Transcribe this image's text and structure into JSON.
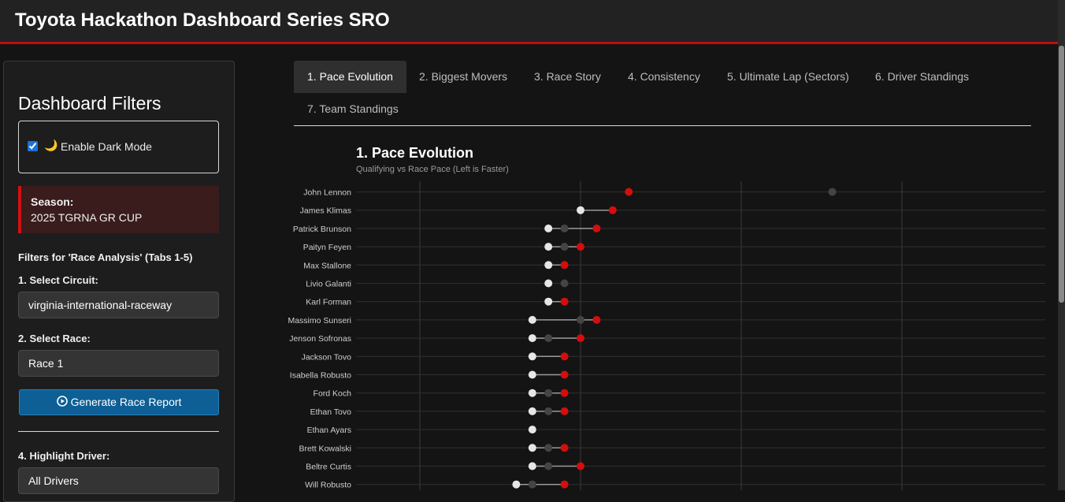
{
  "header": {
    "title": "Toyota Hackathon Dashboard Series SRO"
  },
  "sidebar": {
    "title": "Dashboard Filters",
    "dark_mode": {
      "icon": "moon-icon",
      "glyph": "🌙",
      "label": "Enable Dark Mode",
      "checked": true
    },
    "season": {
      "label": "Season:",
      "value": "2025 TGRNA GR CUP"
    },
    "filters_heading": "Filters for 'Race Analysis' (Tabs 1-5)",
    "circuit": {
      "label": "1. Select Circuit:",
      "value": "virginia-international-raceway"
    },
    "race": {
      "label": "2. Select Race:",
      "value": "Race 1"
    },
    "generate_button": {
      "label": "Generate Race Report",
      "icon": "play-circle-icon"
    },
    "highlight": {
      "label": "4. Highlight Driver:",
      "value": "All Drivers"
    }
  },
  "tabs": [
    {
      "label": "1. Pace Evolution",
      "active": true
    },
    {
      "label": "2. Biggest Movers",
      "active": false
    },
    {
      "label": "3. Race Story",
      "active": false
    },
    {
      "label": "4. Consistency",
      "active": false
    },
    {
      "label": "5. Ultimate Lap (Sectors)",
      "active": false
    },
    {
      "label": "6. Driver Standings",
      "active": false
    },
    {
      "label": "7. Team Standings",
      "active": false
    }
  ],
  "colors": {
    "accent_red": "#d40d0d",
    "qualifying_point": "#e6e6e6",
    "mid_point": "#444444",
    "button_blue": "#0d5f96"
  },
  "chart_data": {
    "type": "dumbbell",
    "title": "1. Pace Evolution",
    "subtitle": "Qualifying vs Race Pace (Left is Faster)",
    "grid": true,
    "xlim": [
      0,
      8
    ],
    "drivers": [
      {
        "name": "John Lennon",
        "qualifying": null,
        "mid": 7.7,
        "race": 3.9
      },
      {
        "name": "James Klimas",
        "qualifying": 3.0,
        "mid": null,
        "race": 3.6
      },
      {
        "name": "Patrick Brunson",
        "qualifying": 2.4,
        "mid": 2.7,
        "race": 3.3
      },
      {
        "name": "Paityn Feyen",
        "qualifying": 2.4,
        "mid": 2.7,
        "race": 3.0
      },
      {
        "name": "Max Stallone",
        "qualifying": 2.4,
        "mid": null,
        "race": 2.7
      },
      {
        "name": "Livio Galanti",
        "qualifying": 2.4,
        "mid": 2.7,
        "race": null
      },
      {
        "name": "Karl Forman",
        "qualifying": 2.4,
        "mid": null,
        "race": 2.7
      },
      {
        "name": "Massimo Sunseri",
        "qualifying": 2.1,
        "mid": 3.0,
        "race": 3.3
      },
      {
        "name": "Jenson Sofronas",
        "qualifying": 2.1,
        "mid": 2.4,
        "race": 3.0
      },
      {
        "name": "Jackson Tovo",
        "qualifying": 2.1,
        "mid": null,
        "race": 2.7
      },
      {
        "name": "Isabella Robusto",
        "qualifying": 2.1,
        "mid": null,
        "race": 2.7
      },
      {
        "name": "Ford Koch",
        "qualifying": 2.1,
        "mid": 2.4,
        "race": 2.7
      },
      {
        "name": "Ethan Tovo",
        "qualifying": 2.1,
        "mid": 2.4,
        "race": 2.7
      },
      {
        "name": "Ethan Ayars",
        "qualifying": 2.1,
        "mid": null,
        "race": null
      },
      {
        "name": "Brett Kowalski",
        "qualifying": 2.1,
        "mid": 2.4,
        "race": 2.7
      },
      {
        "name": "Beltre Curtis",
        "qualifying": 2.1,
        "mid": 2.4,
        "race": 3.0
      },
      {
        "name": "Will Robusto",
        "qualifying": 1.8,
        "mid": 2.1,
        "race": 2.7
      }
    ]
  }
}
